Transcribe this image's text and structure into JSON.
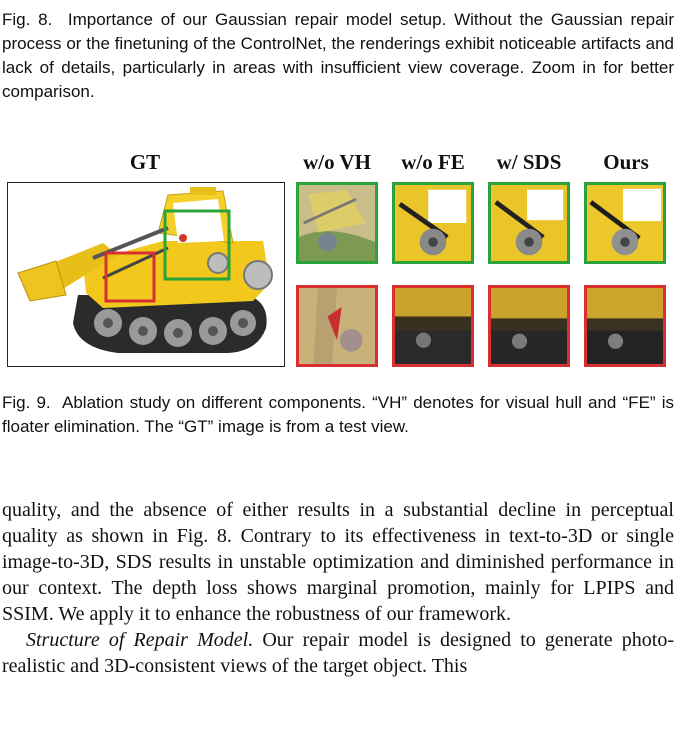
{
  "fig8": {
    "label": "Fig. 8.",
    "text": "Importance of our Gaussian repair model setup. Without the Gaussian repair process or the finetuning of the ControlNet, the renderings exhibit noticeable artifacts and lack of details, particularly in areas with insufficient view coverage. Zoom in for better comparison."
  },
  "figure9": {
    "column_labels": [
      "GT",
      "w/o VH",
      "w/o FE",
      "w/ SDS",
      "Ours"
    ],
    "box_colors": {
      "green": "#2aa33a",
      "red": "#d83030"
    }
  },
  "fig9": {
    "label": "Fig. 9.",
    "text": "Ablation study on different components. “VH” denotes for visual hull and “FE” is floater elimination. The “GT” image is from a test view."
  },
  "body": {
    "para1": "quality, and the absence of either results in a substantial decline in perceptual quality as shown in Fig. 8. Contrary to its effectiveness in text-to-3D or single image-to-3D, SDS results in unstable optimization and diminished performance in our context. The depth loss shows marginal promotion, mainly for LPIPS and SSIM. We apply it to enhance the robustness of our framework.",
    "para2_heading": "Structure of Repair Model.",
    "para2_text": "Our repair model is designed to generate photo-realistic and 3D-consistent views of the target object. This"
  }
}
